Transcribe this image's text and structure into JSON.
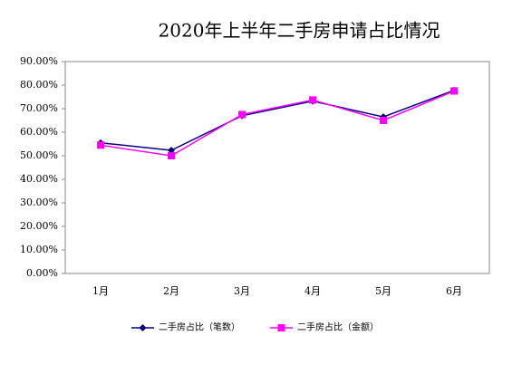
{
  "chart_data": {
    "type": "line",
    "title": "2020年上半年二手房申请占比情况",
    "categories": [
      "1月",
      "2月",
      "3月",
      "4月",
      "5月",
      "6月"
    ],
    "series": [
      {
        "name": "二手房占比（笔数）",
        "color": "#000080",
        "marker": "diamond",
        "values": [
          55.5,
          52.3,
          67.0,
          73.2,
          66.5,
          77.8
        ]
      },
      {
        "name": "二手房占比（金额）",
        "color": "#ff00ff",
        "marker": "square",
        "values": [
          54.5,
          50.0,
          67.5,
          73.7,
          65.0,
          77.5
        ]
      }
    ],
    "ylim": [
      0,
      90
    ],
    "yticks": [
      {
        "value": 0,
        "label": "0.00%"
      },
      {
        "value": 10,
        "label": "10.00%"
      },
      {
        "value": 20,
        "label": "20.00%"
      },
      {
        "value": 30,
        "label": "30.00%"
      },
      {
        "value": 40,
        "label": "40.00%"
      },
      {
        "value": 50,
        "label": "50.00%"
      },
      {
        "value": 60,
        "label": "60.00%"
      },
      {
        "value": 70,
        "label": "70.00%"
      },
      {
        "value": 80,
        "label": "80.00%"
      },
      {
        "value": 90,
        "label": "90.00%"
      }
    ],
    "grid": false,
    "legend": "bottom"
  }
}
